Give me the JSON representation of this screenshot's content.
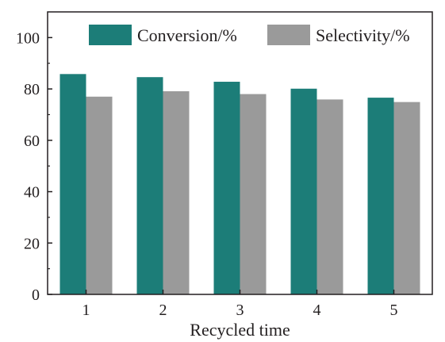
{
  "chart_data": {
    "type": "bar",
    "categories": [
      "1",
      "2",
      "3",
      "4",
      "5"
    ],
    "series": [
      {
        "name": "Conversion/%",
        "values": [
          85.8,
          84.6,
          82.8,
          80.1,
          76.6
        ],
        "color": "#1c7d78"
      },
      {
        "name": "Selectivity/%",
        "values": [
          77.0,
          79.1,
          78.0,
          75.9,
          74.9
        ],
        "color": "#9a9a9a"
      }
    ],
    "title": "",
    "xlabel": "Recycled time",
    "ylabel": "",
    "ylim": [
      0,
      110
    ],
    "yticks": [
      0,
      20,
      40,
      60,
      80,
      100
    ],
    "legend_position": "top-right",
    "grid": false
  }
}
